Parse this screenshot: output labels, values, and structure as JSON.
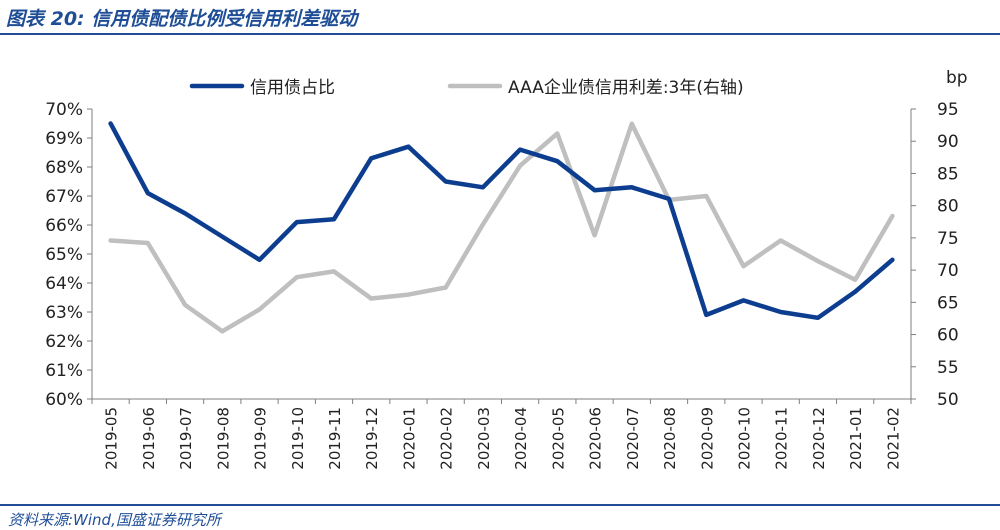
{
  "header": {
    "title": "图表 20:  信用债配债比例受信用利差驱动"
  },
  "footer": {
    "source": "资料来源:Wind,国盛证券研究所"
  },
  "colors": {
    "accent": "#1f4e96",
    "series1": "#0d3d8f",
    "series2": "#bfbfbf",
    "axis": "#7f7f7f",
    "text": "#222222"
  },
  "chart_data": {
    "type": "line",
    "title": "信用债配债比例受信用利差驱动",
    "categories": [
      "2019-05",
      "2019-06",
      "2019-07",
      "2019-08",
      "2019-09",
      "2019-10",
      "2019-11",
      "2019-12",
      "2020-01",
      "2020-02",
      "2020-03",
      "2020-04",
      "2020-05",
      "2020-06",
      "2020-07",
      "2020-08",
      "2020-09",
      "2020-10",
      "2020-11",
      "2020-12",
      "2021-01",
      "2021-02"
    ],
    "left_axis": {
      "ylim": [
        60,
        70
      ],
      "ticks": [
        "70%",
        "69%",
        "68%",
        "67%",
        "66%",
        "65%",
        "64%",
        "63%",
        "62%",
        "61%",
        "60%"
      ]
    },
    "right_axis": {
      "label": "bp",
      "ylim": [
        50,
        95
      ],
      "ticks": [
        "95",
        "90",
        "85",
        "80",
        "75",
        "70",
        "65",
        "60",
        "55",
        "50"
      ]
    },
    "series": [
      {
        "name": "信用债占比",
        "axis": "left",
        "unit": "%",
        "values": [
          69.5,
          67.1,
          66.4,
          65.6,
          64.8,
          66.1,
          66.2,
          68.3,
          68.7,
          67.5,
          67.3,
          68.6,
          68.2,
          67.2,
          67.3,
          66.9,
          62.9,
          63.4,
          63.0,
          62.8,
          63.7,
          64.8
        ]
      },
      {
        "name": "AAA企业债信用利差:3年(右轴)",
        "axis": "right",
        "unit": "bp",
        "values": [
          74.6,
          74.2,
          64.6,
          60.5,
          63.9,
          68.9,
          69.8,
          65.6,
          66.2,
          67.3,
          77.1,
          86.2,
          91.2,
          75.4,
          92.7,
          80.9,
          81.5,
          70.6,
          74.6,
          71.4,
          68.5,
          78.4
        ]
      }
    ],
    "legend": {
      "position": "top"
    }
  }
}
